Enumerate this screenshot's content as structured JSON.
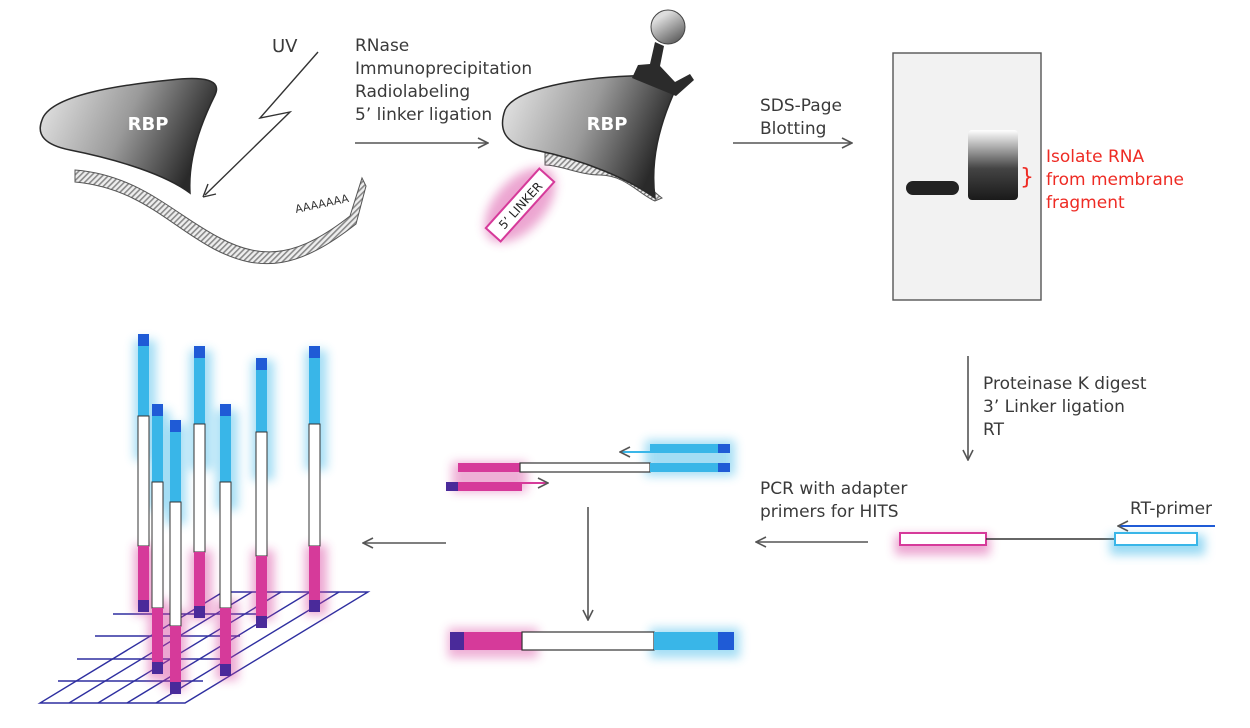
{
  "step1": {
    "protein_label": "RBP",
    "uv_label": "UV",
    "polya_label": "AAAAAAA"
  },
  "step1_arrow_labels": [
    "RNase",
    "Immunoprecipitation",
    "Radiolabeling",
    "5’ linker ligation"
  ],
  "step2": {
    "protein_label": "RBP",
    "linker_label": "5’ LINKER"
  },
  "step2_arrow_labels": [
    "SDS-Page",
    "Blotting"
  ],
  "step3_annotation": [
    "Isolate RNA",
    "from membrane",
    "fragment"
  ],
  "step4_arrow_labels": [
    "Proteinase K digest",
    "3’ Linker ligation",
    "RT"
  ],
  "rt_primer_label": "RT-primer",
  "pcr_arrow_labels": [
    "PCR with adapter",
    "primers for HITS"
  ],
  "colors": {
    "linker_5": "#d63a9a",
    "linker_3": "#39b6e8",
    "adapter_dark_5": "#4a2a9a",
    "adapter_dark_3": "#1f5bd6",
    "grid": "#2e2fa0",
    "annotation": "#ee2b24"
  }
}
